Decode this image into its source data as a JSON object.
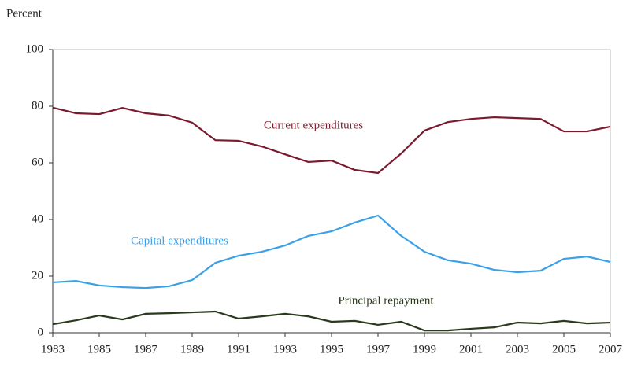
{
  "chart_data": {
    "type": "line",
    "y_label": "Percent",
    "x": [
      1983,
      1984,
      1985,
      1986,
      1987,
      1988,
      1989,
      1990,
      1991,
      1992,
      1993,
      1994,
      1995,
      1996,
      1997,
      1998,
      1999,
      2000,
      2001,
      2002,
      2003,
      2004,
      2005,
      2006,
      2007
    ],
    "xlim": [
      1983,
      2007
    ],
    "xticks": [
      1983,
      1985,
      1987,
      1989,
      1991,
      1993,
      1995,
      1997,
      1999,
      2001,
      2003,
      2005,
      2007
    ],
    "ylim": [
      0,
      100
    ],
    "yticks": [
      0,
      20,
      40,
      60,
      80,
      100
    ],
    "series": [
      {
        "name": "Current expenditures",
        "color": "#7a1a2e",
        "values": [
          79.5,
          77.5,
          77.2,
          79.4,
          77.5,
          76.7,
          74.2,
          68,
          67.8,
          65.8,
          63,
          60.3,
          60.8,
          57.5,
          56.4,
          63.3,
          71.4,
          74.4,
          75.5,
          76.1,
          75.8,
          75.5,
          71.1,
          71.1,
          72.8
        ]
      },
      {
        "name": "Capital expenditures",
        "color": "#3aa0e8",
        "values": [
          17.8,
          18.3,
          16.7,
          16.1,
          15.8,
          16.4,
          18.6,
          24.7,
          27.2,
          28.6,
          30.8,
          34.2,
          35.8,
          38.9,
          41.4,
          34.2,
          28.6,
          25.6,
          24.4,
          22.2,
          21.4,
          21.9,
          26.1,
          26.9,
          25
        ]
      },
      {
        "name": "Principal repayment",
        "color": "#2a3a1c",
        "values": [
          3,
          4.4,
          6.1,
          4.7,
          6.7,
          6.9,
          7.2,
          7.5,
          5,
          5.8,
          6.7,
          5.8,
          3.9,
          4.2,
          2.8,
          3.9,
          0.8,
          0.8,
          1.4,
          1.9,
          3.6,
          3.3,
          4.2,
          3.3,
          3.6
        ]
      }
    ]
  }
}
